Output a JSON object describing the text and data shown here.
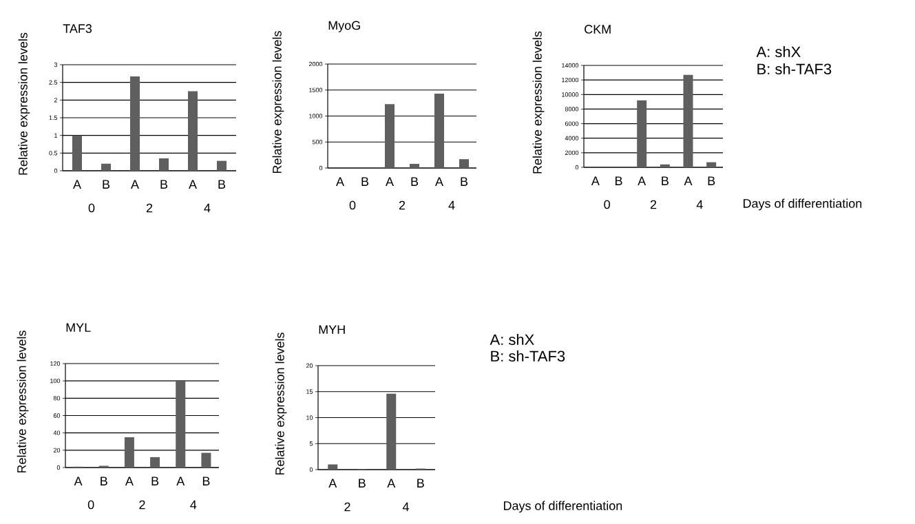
{
  "chart_data": [
    {
      "type": "bar",
      "title": "TAF3",
      "ylabel": "Relative expression levels",
      "categories": [
        "A",
        "B",
        "A",
        "B",
        "A",
        "B"
      ],
      "values": [
        1.0,
        0.2,
        2.67,
        0.35,
        2.25,
        0.28
      ],
      "color": "#5f5f5f",
      "ylim": [
        0,
        3
      ],
      "yticks": [
        0,
        0.5,
        1,
        1.5,
        2,
        2.5,
        3
      ],
      "grid": "y",
      "annotations": [
        "0",
        "2",
        "4"
      ]
    },
    {
      "type": "bar",
      "title": "MyoG",
      "ylabel": "Relative expression levels",
      "categories": [
        "A",
        "B",
        "A",
        "B",
        "A",
        "B"
      ],
      "values": [
        0,
        0,
        1230,
        80,
        1430,
        170
      ],
      "color": "#5f5f5f",
      "ylim": [
        0,
        2000
      ],
      "yticks": [
        0,
        500,
        1000,
        1500,
        2000
      ],
      "grid": "y",
      "annotations": [
        "0",
        "2",
        "4"
      ]
    },
    {
      "type": "bar",
      "title": "CKM",
      "ylabel": "Relative expression levels",
      "xlabel": "Days of differentiation",
      "categories": [
        "A",
        "B",
        "A",
        "B",
        "A",
        "B"
      ],
      "values": [
        0,
        0,
        9200,
        400,
        12700,
        700
      ],
      "color": "#5f5f5f",
      "ylim": [
        0,
        14000
      ],
      "yticks": [
        0,
        2000,
        4000,
        6000,
        8000,
        10000,
        12000,
        14000
      ],
      "grid": "y",
      "annotations": [
        "0",
        "2",
        "4",
        "A: shX",
        "B: sh-TAF3"
      ]
    },
    {
      "type": "bar",
      "title": "MYL",
      "ylabel": "Relative expression levels",
      "categories": [
        "A",
        "B",
        "A",
        "B",
        "A",
        "B"
      ],
      "values": [
        1,
        2,
        35,
        12,
        101,
        17
      ],
      "color": "#5f5f5f",
      "ylim": [
        0,
        120
      ],
      "yticks": [
        0,
        20,
        40,
        60,
        80,
        100,
        120
      ],
      "grid": "y",
      "annotations": [
        "0",
        "2",
        "4",
        "A: shX",
        "B: sh-TAF3"
      ]
    },
    {
      "type": "bar",
      "title": "MYH",
      "ylabel": "Relative expression levels",
      "xlabel": "Days of differentiation",
      "categories": [
        "A",
        "B",
        "A",
        "B"
      ],
      "values": [
        1,
        0.1,
        14.6,
        0.2
      ],
      "color": "#5f5f5f",
      "ylim": [
        0,
        20
      ],
      "yticks": [
        0,
        5,
        10,
        15,
        20
      ],
      "grid": "y",
      "annotations": [
        "2",
        "4"
      ]
    }
  ]
}
